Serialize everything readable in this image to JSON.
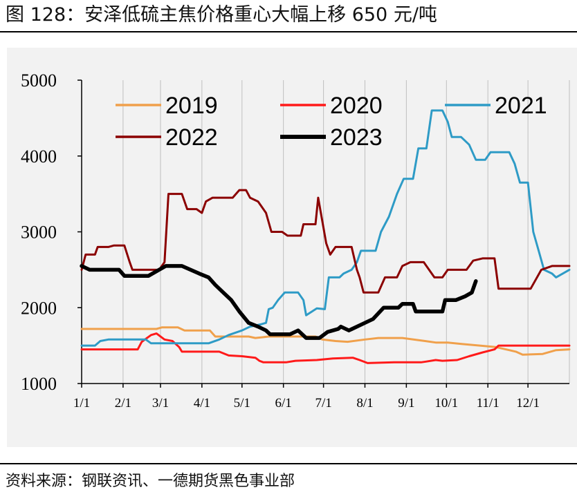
{
  "title": "图 128：安泽低硫主焦价格重心大幅上移 650 元/吨",
  "source": "资料来源：钢联资讯、一德期货黑色事业部",
  "chart_data": {
    "type": "line",
    "title": "安泽低硫主焦价格重心大幅上移 650 元/吨",
    "xlabel": "",
    "ylabel": "",
    "ylim": [
      1000,
      5000
    ],
    "yticks": [
      "1000",
      "2000",
      "3000",
      "4000",
      "5000"
    ],
    "yticks_values": [
      1000,
      2000,
      3000,
      4000,
      5000
    ],
    "categories": [
      "1/1",
      "2/1",
      "3/1",
      "4/1",
      "5/1",
      "6/1",
      "7/1",
      "8/1",
      "9/1",
      "10/1",
      "11/1",
      "12/1"
    ],
    "x_unit": "day_of_year (0-365)",
    "legend_location": "top",
    "series": [
      {
        "name": "2019",
        "color": "#f0a04b",
        "points": [
          [
            0,
            1720
          ],
          [
            56,
            1720
          ],
          [
            60,
            1740
          ],
          [
            72,
            1740
          ],
          [
            77,
            1700
          ],
          [
            96,
            1700
          ],
          [
            100,
            1620
          ],
          [
            125,
            1620
          ],
          [
            130,
            1600
          ],
          [
            140,
            1620
          ],
          [
            175,
            1620
          ],
          [
            180,
            1580
          ],
          [
            190,
            1560
          ],
          [
            199,
            1550
          ],
          [
            212,
            1580
          ],
          [
            222,
            1600
          ],
          [
            240,
            1600
          ],
          [
            257,
            1560
          ],
          [
            265,
            1540
          ],
          [
            274,
            1540
          ],
          [
            285,
            1520
          ],
          [
            298,
            1500
          ],
          [
            310,
            1480
          ],
          [
            320,
            1440
          ],
          [
            325,
            1420
          ],
          [
            330,
            1380
          ],
          [
            345,
            1390
          ],
          [
            355,
            1440
          ],
          [
            365,
            1450
          ]
        ]
      },
      {
        "name": "2020",
        "color": "#ff1a1a",
        "points": [
          [
            0,
            1450
          ],
          [
            42,
            1450
          ],
          [
            45,
            1550
          ],
          [
            52,
            1640
          ],
          [
            56,
            1660
          ],
          [
            62,
            1580
          ],
          [
            68,
            1560
          ],
          [
            73,
            1480
          ],
          [
            75,
            1420
          ],
          [
            103,
            1420
          ],
          [
            110,
            1370
          ],
          [
            120,
            1360
          ],
          [
            130,
            1340
          ],
          [
            133,
            1300
          ],
          [
            136,
            1280
          ],
          [
            153,
            1280
          ],
          [
            160,
            1300
          ],
          [
            176,
            1310
          ],
          [
            188,
            1330
          ],
          [
            203,
            1340
          ],
          [
            208,
            1310
          ],
          [
            214,
            1270
          ],
          [
            234,
            1280
          ],
          [
            254,
            1280
          ],
          [
            258,
            1290
          ],
          [
            265,
            1310
          ],
          [
            270,
            1300
          ],
          [
            281,
            1310
          ],
          [
            290,
            1360
          ],
          [
            300,
            1410
          ],
          [
            309,
            1450
          ],
          [
            312,
            1500
          ],
          [
            365,
            1500
          ]
        ]
      },
      {
        "name": "2021",
        "color": "#2e9bc6",
        "points": [
          [
            0,
            1500
          ],
          [
            10,
            1500
          ],
          [
            14,
            1560
          ],
          [
            20,
            1580
          ],
          [
            48,
            1580
          ],
          [
            52,
            1530
          ],
          [
            88,
            1530
          ],
          [
            95,
            1530
          ],
          [
            103,
            1580
          ],
          [
            110,
            1640
          ],
          [
            120,
            1700
          ],
          [
            126,
            1750
          ],
          [
            134,
            1780
          ],
          [
            138,
            1800
          ],
          [
            140,
            1980
          ],
          [
            143,
            2000
          ],
          [
            147,
            2100
          ],
          [
            152,
            2200
          ],
          [
            162,
            2200
          ],
          [
            166,
            2100
          ],
          [
            168,
            1900
          ],
          [
            176,
            1990
          ],
          [
            182,
            1980
          ],
          [
            185,
            2400
          ],
          [
            193,
            2400
          ],
          [
            196,
            2450
          ],
          [
            202,
            2500
          ],
          [
            206,
            2600
          ],
          [
            209,
            2750
          ],
          [
            220,
            2750
          ],
          [
            224,
            3000
          ],
          [
            230,
            3200
          ],
          [
            236,
            3500
          ],
          [
            241,
            3700
          ],
          [
            248,
            3700
          ],
          [
            252,
            4100
          ],
          [
            258,
            4100
          ],
          [
            262,
            4600
          ],
          [
            270,
            4600
          ],
          [
            274,
            4450
          ],
          [
            277,
            4250
          ],
          [
            284,
            4250
          ],
          [
            290,
            4150
          ],
          [
            295,
            3950
          ],
          [
            302,
            3950
          ],
          [
            306,
            4050
          ],
          [
            320,
            4050
          ],
          [
            324,
            3900
          ],
          [
            328,
            3650
          ],
          [
            334,
            3650
          ],
          [
            338,
            3000
          ],
          [
            342,
            2750
          ],
          [
            346,
            2500
          ],
          [
            352,
            2450
          ],
          [
            355,
            2400
          ],
          [
            365,
            2500
          ]
        ]
      },
      {
        "name": "2022",
        "color": "#8b0000",
        "points": [
          [
            0,
            2500
          ],
          [
            3,
            2700
          ],
          [
            10,
            2700
          ],
          [
            12,
            2800
          ],
          [
            20,
            2800
          ],
          [
            24,
            2820
          ],
          [
            32,
            2820
          ],
          [
            36,
            2600
          ],
          [
            38,
            2500
          ],
          [
            58,
            2500
          ],
          [
            62,
            2600
          ],
          [
            65,
            3500
          ],
          [
            75,
            3500
          ],
          [
            79,
            3300
          ],
          [
            86,
            3300
          ],
          [
            90,
            3250
          ],
          [
            93,
            3400
          ],
          [
            98,
            3450
          ],
          [
            104,
            3450
          ],
          [
            113,
            3450
          ],
          [
            118,
            3550
          ],
          [
            123,
            3550
          ],
          [
            126,
            3450
          ],
          [
            132,
            3400
          ],
          [
            138,
            3250
          ],
          [
            142,
            3000
          ],
          [
            150,
            3000
          ],
          [
            154,
            2950
          ],
          [
            164,
            2950
          ],
          [
            166,
            3100
          ],
          [
            175,
            3100
          ],
          [
            177,
            3450
          ],
          [
            180,
            3150
          ],
          [
            183,
            2850
          ],
          [
            186,
            2700
          ],
          [
            190,
            2800
          ],
          [
            199,
            2800
          ],
          [
            202,
            2800
          ],
          [
            206,
            2500
          ],
          [
            208,
            2400
          ],
          [
            211,
            2200
          ],
          [
            222,
            2200
          ],
          [
            227,
            2400
          ],
          [
            236,
            2400
          ],
          [
            240,
            2550
          ],
          [
            246,
            2600
          ],
          [
            256,
            2600
          ],
          [
            260,
            2500
          ],
          [
            264,
            2400
          ],
          [
            270,
            2400
          ],
          [
            274,
            2500
          ],
          [
            288,
            2500
          ],
          [
            293,
            2620
          ],
          [
            300,
            2650
          ],
          [
            306,
            2650
          ],
          [
            309,
            2650
          ],
          [
            312,
            2250
          ],
          [
            330,
            2250
          ],
          [
            336,
            2250
          ],
          [
            344,
            2500
          ],
          [
            352,
            2550
          ],
          [
            365,
            2550
          ]
        ]
      },
      {
        "name": "2023",
        "color": "#000000",
        "points": [
          [
            0,
            2550
          ],
          [
            6,
            2500
          ],
          [
            28,
            2500
          ],
          [
            32,
            2420
          ],
          [
            50,
            2420
          ],
          [
            58,
            2500
          ],
          [
            63,
            2550
          ],
          [
            75,
            2550
          ],
          [
            88,
            2450
          ],
          [
            95,
            2400
          ],
          [
            100,
            2300
          ],
          [
            106,
            2200
          ],
          [
            112,
            2100
          ],
          [
            118,
            1950
          ],
          [
            125,
            1800
          ],
          [
            132,
            1750
          ],
          [
            138,
            1700
          ],
          [
            141,
            1650
          ],
          [
            156,
            1650
          ],
          [
            162,
            1700
          ],
          [
            168,
            1600
          ],
          [
            178,
            1600
          ],
          [
            184,
            1680
          ],
          [
            188,
            1700
          ],
          [
            192,
            1720
          ],
          [
            194,
            1750
          ],
          [
            200,
            1700
          ],
          [
            212,
            1800
          ],
          [
            218,
            1850
          ],
          [
            226,
            2000
          ],
          [
            237,
            2000
          ],
          [
            240,
            2050
          ],
          [
            248,
            2050
          ],
          [
            250,
            1950
          ],
          [
            270,
            1950
          ],
          [
            272,
            2100
          ],
          [
            280,
            2100
          ],
          [
            287,
            2150
          ],
          [
            292,
            2200
          ],
          [
            295,
            2350
          ]
        ]
      }
    ]
  }
}
